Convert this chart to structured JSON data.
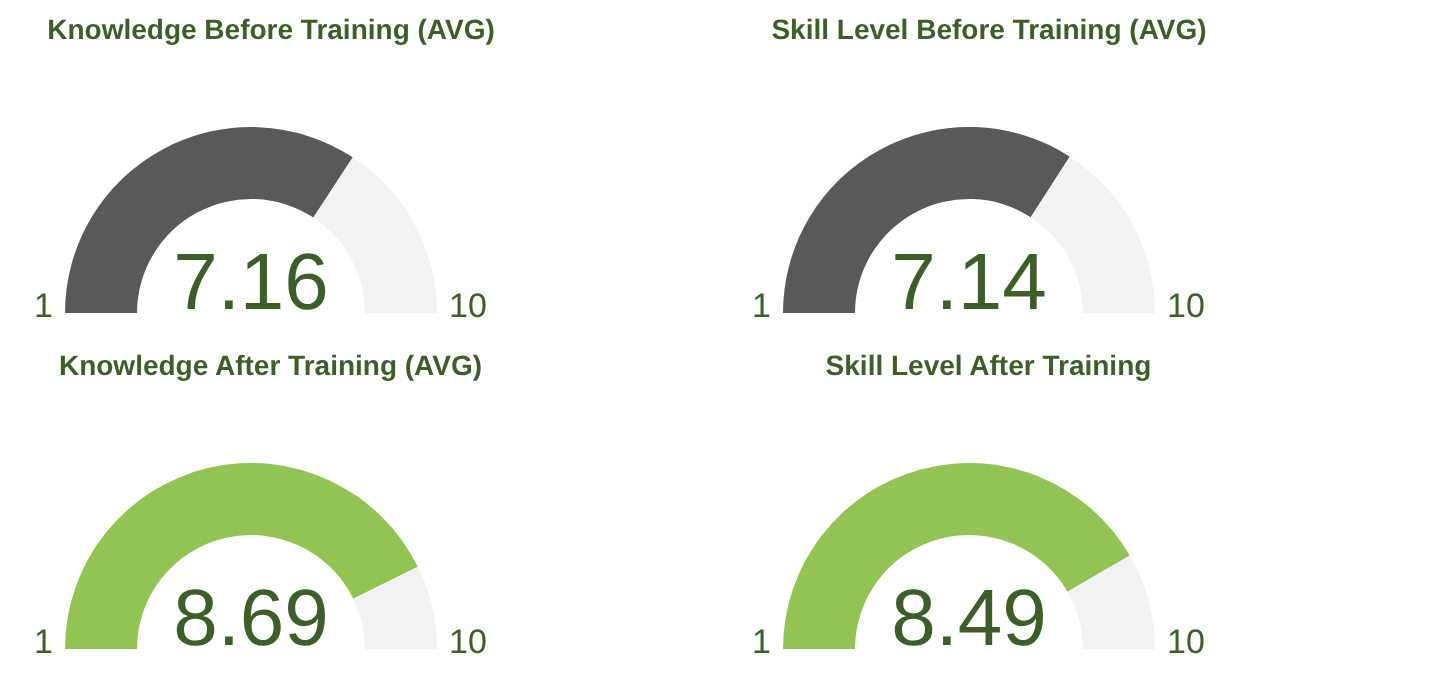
{
  "chart_data": [
    {
      "type": "donut",
      "title": "Knowledge Before Training (AVG)",
      "categories": [
        null,
        null
      ],
      "values": [
        68.44,
        31.56
      ],
      "colors": [
        "#595959",
        "#f2f2f2"
      ],
      "annotations": [
        "7.16",
        "1",
        "10"
      ]
    },
    {
      "type": "donut",
      "title": "Skill Level Before Training (AVG)",
      "categories": [
        null,
        null
      ],
      "values": [
        68.22,
        31.78
      ],
      "colors": [
        "#595959",
        "#f2f2f2"
      ],
      "annotations": [
        "7.14",
        "1",
        "10"
      ]
    },
    {
      "type": "donut",
      "title": "Knowledge After Training (AVG)",
      "categories": [
        null,
        null
      ],
      "values": [
        85.44,
        14.56
      ],
      "colors": [
        "#92c353",
        "#f2f2f2"
      ],
      "annotations": [
        "8.69",
        "1",
        "10"
      ]
    },
    {
      "type": "donut",
      "title": "Skill Level After Training",
      "categories": [
        null,
        null
      ],
      "values": [
        83.22,
        16.78
      ],
      "colors": [
        "#92c353",
        "#f2f2f2"
      ],
      "annotations": [
        "8.49",
        "1",
        "10"
      ]
    }
  ]
}
